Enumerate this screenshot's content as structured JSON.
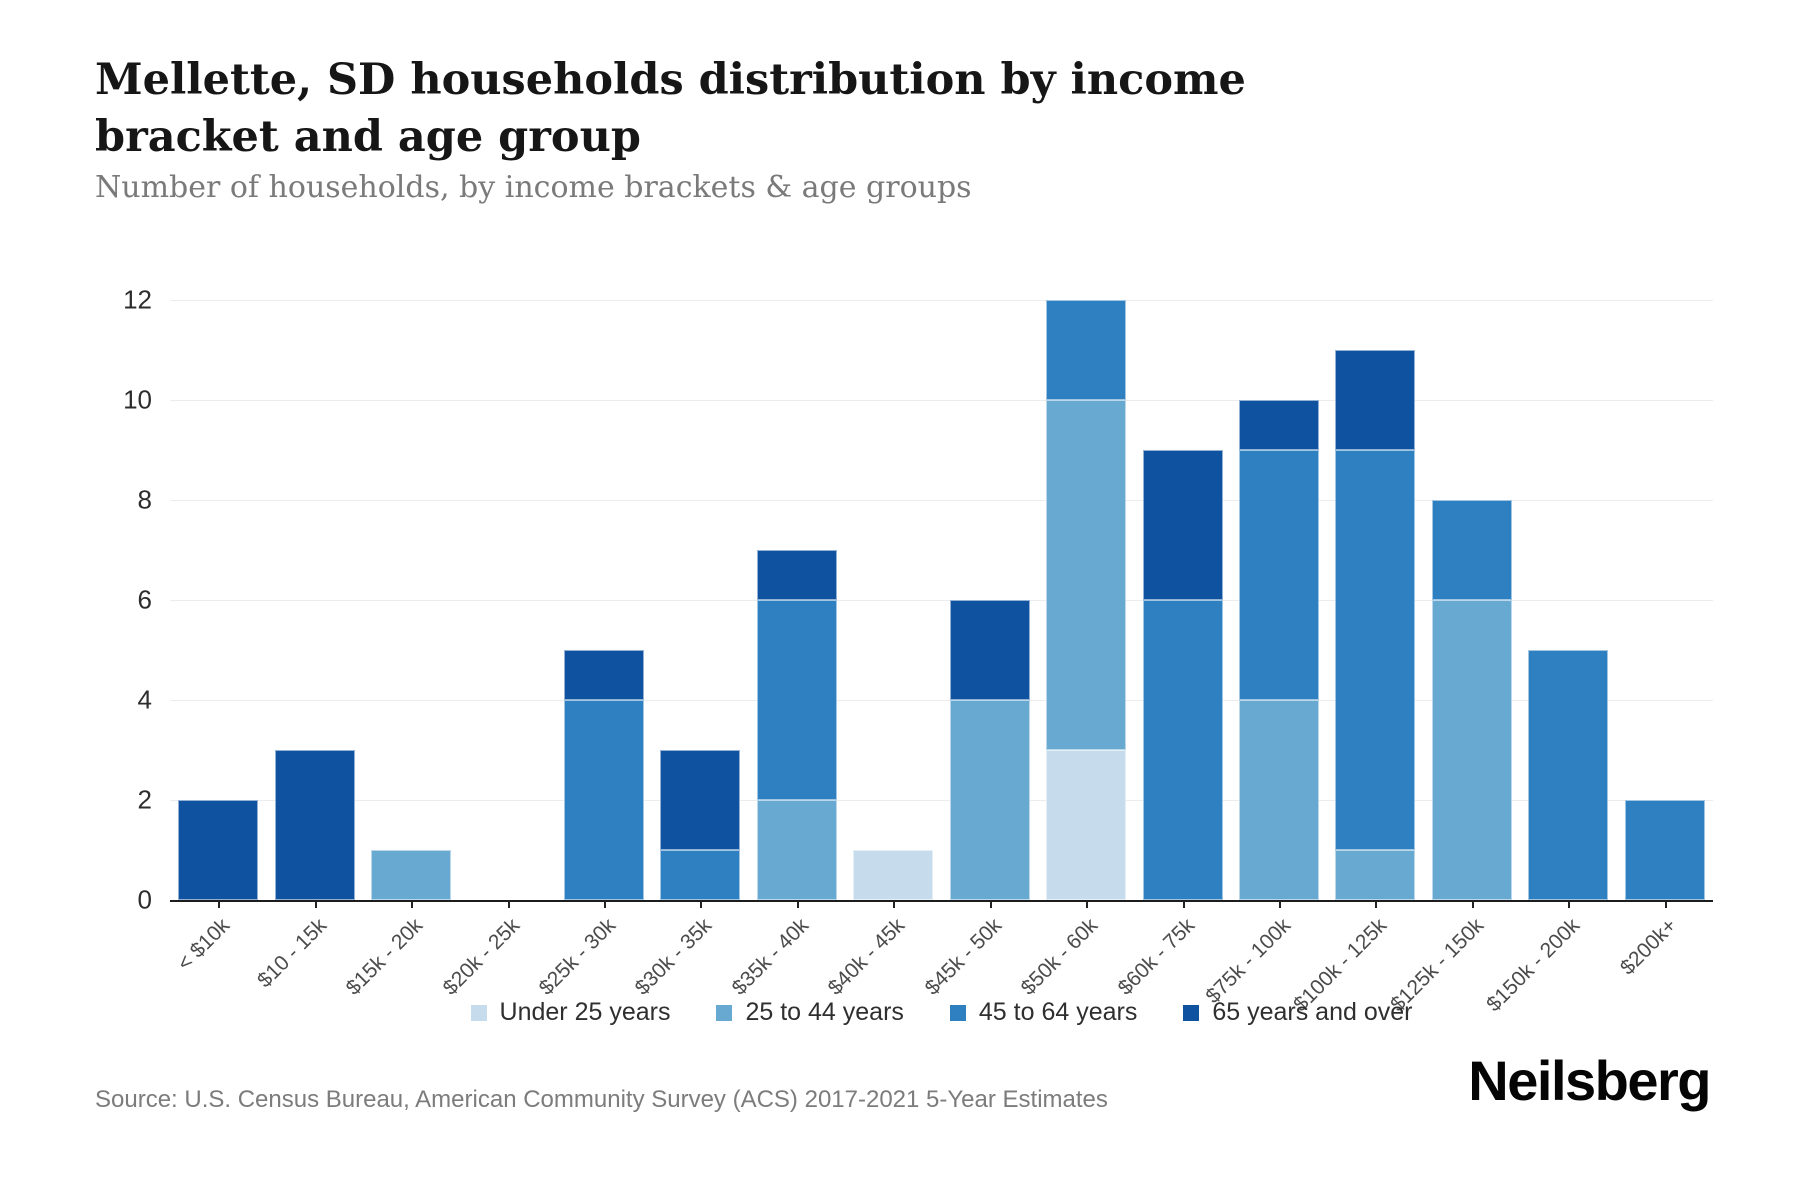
{
  "header": {
    "title": "Mellette, SD households distribution by income bracket and age group",
    "subtitle": "Number of households, by income brackets & age groups"
  },
  "chart_data": {
    "type": "bar",
    "stacked": true,
    "title": "Mellette, SD households distribution by income bracket and age group",
    "subtitle": "Number of households, by income brackets & age groups",
    "xlabel": "",
    "ylabel": "Number of households",
    "ylim": [
      0,
      12
    ],
    "yticks": [
      0,
      2,
      4,
      6,
      8,
      10,
      12
    ],
    "grid": "horizontal",
    "legend_position": "bottom",
    "categories": [
      "< $10k",
      "$10 - 15k",
      "$15k - 20k",
      "$20k - 25k",
      "$25k - 30k",
      "$30k - 35k",
      "$35k - 40k",
      "$40k - 45k",
      "$45k - 50k",
      "$50k - 60k",
      "$60k - 75k",
      "$75k - 100k",
      "$100k - 125k",
      "$125k - 150k",
      "$150k - 200k",
      "$200k+"
    ],
    "series": [
      {
        "name": "Under 25 years",
        "color": "#c6dbec",
        "values": [
          0,
          0,
          0,
          0,
          0,
          0,
          0,
          1,
          0,
          3,
          0,
          0,
          0,
          0,
          0,
          0
        ]
      },
      {
        "name": "25 to 44 years",
        "color": "#68a9d2",
        "values": [
          0,
          0,
          1,
          0,
          0,
          0,
          2,
          0,
          4,
          7,
          0,
          4,
          1,
          6,
          0,
          0
        ]
      },
      {
        "name": "45 to 64 years",
        "color": "#2f80c0",
        "values": [
          0,
          0,
          0,
          0,
          4,
          1,
          4,
          0,
          0,
          2,
          6,
          5,
          8,
          2,
          5,
          2
        ]
      },
      {
        "name": "65 years and over",
        "color": "#0e52a0",
        "values": [
          2,
          3,
          0,
          0,
          1,
          2,
          1,
          0,
          2,
          0,
          3,
          1,
          2,
          0,
          0,
          0
        ]
      }
    ],
    "totals": [
      2,
      3,
      1,
      0,
      5,
      3,
      7,
      1,
      6,
      12,
      9,
      10,
      11,
      8,
      5,
      2
    ]
  },
  "footer": {
    "source": "Source: U.S. Census Bureau, American Community Survey (ACS) 2017-2021 5-Year Estimates",
    "logo": "Neilsberg"
  },
  "colors": {
    "axis": "#1c1c1c",
    "gridline": "#ececec",
    "title_text": "#161616",
    "subtitle_text": "#7a7a7a",
    "tick_label": "#4b4b4b"
  }
}
